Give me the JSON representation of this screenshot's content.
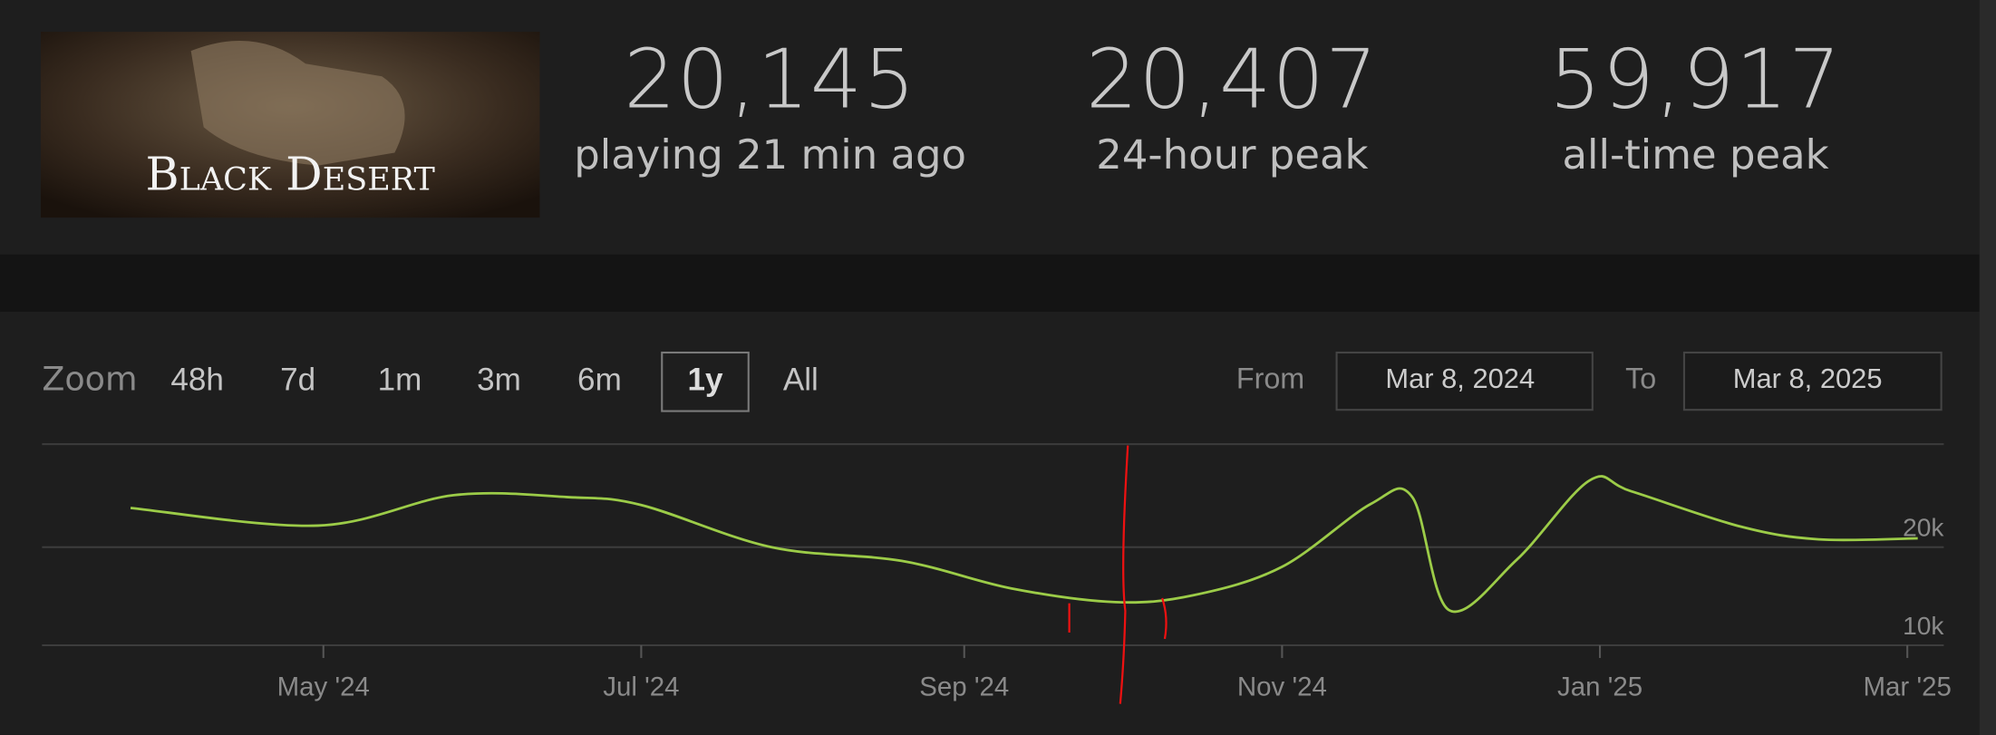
{
  "header": {
    "game_title": "Black Desert",
    "stats": [
      {
        "value": "20,145",
        "label": "playing 21 min ago"
      },
      {
        "value": "20,407",
        "label": "24-hour peak"
      },
      {
        "value": "59,917",
        "label": "all-time peak"
      }
    ]
  },
  "zoom": {
    "label": "Zoom",
    "options": [
      "48h",
      "7d",
      "1m",
      "3m",
      "6m",
      "1y",
      "All"
    ],
    "selected": "1y"
  },
  "range": {
    "from_label": "From",
    "from": "Mar 8, 2024",
    "to_label": "To",
    "to": "Mar 8, 2025"
  },
  "chart_data": {
    "type": "line",
    "color": "#9ccc48",
    "x": [
      "2024-03-25",
      "2024-04-30",
      "2024-05-26",
      "2024-06-17",
      "2024-07-01",
      "2024-07-26",
      "2024-08-20",
      "2024-09-10",
      "2024-09-30",
      "2024-10-15",
      "2024-11-01",
      "2024-11-18",
      "2024-11-26",
      "2024-12-03",
      "2024-12-16",
      "2024-12-30",
      "2025-01-07",
      "2025-01-28",
      "2025-02-12",
      "2025-03-03"
    ],
    "values": [
      24000,
      22200,
      25300,
      25100,
      24300,
      20000,
      18600,
      15800,
      14400,
      15100,
      18000,
      24400,
      25100,
      13600,
      18700,
      26800,
      25700,
      22100,
      20800,
      20900
    ],
    "xlim": [
      "2024-03-08",
      "2025-03-08"
    ],
    "xticks": [
      {
        "value": "2024-05-01",
        "label": "May '24"
      },
      {
        "value": "2024-07-01",
        "label": "Jul '24"
      },
      {
        "value": "2024-09-01",
        "label": "Sep '24"
      },
      {
        "value": "2024-11-01",
        "label": "Nov '24"
      },
      {
        "value": "2025-01-01",
        "label": "Jan '25"
      },
      {
        "value": "2025-03-01",
        "label": "Mar '25"
      }
    ],
    "ylim": [
      10000,
      30500
    ],
    "yticks": [
      {
        "value": 10000,
        "label": "10k"
      },
      {
        "value": 20000,
        "label": "20k"
      }
    ],
    "grid": true
  }
}
